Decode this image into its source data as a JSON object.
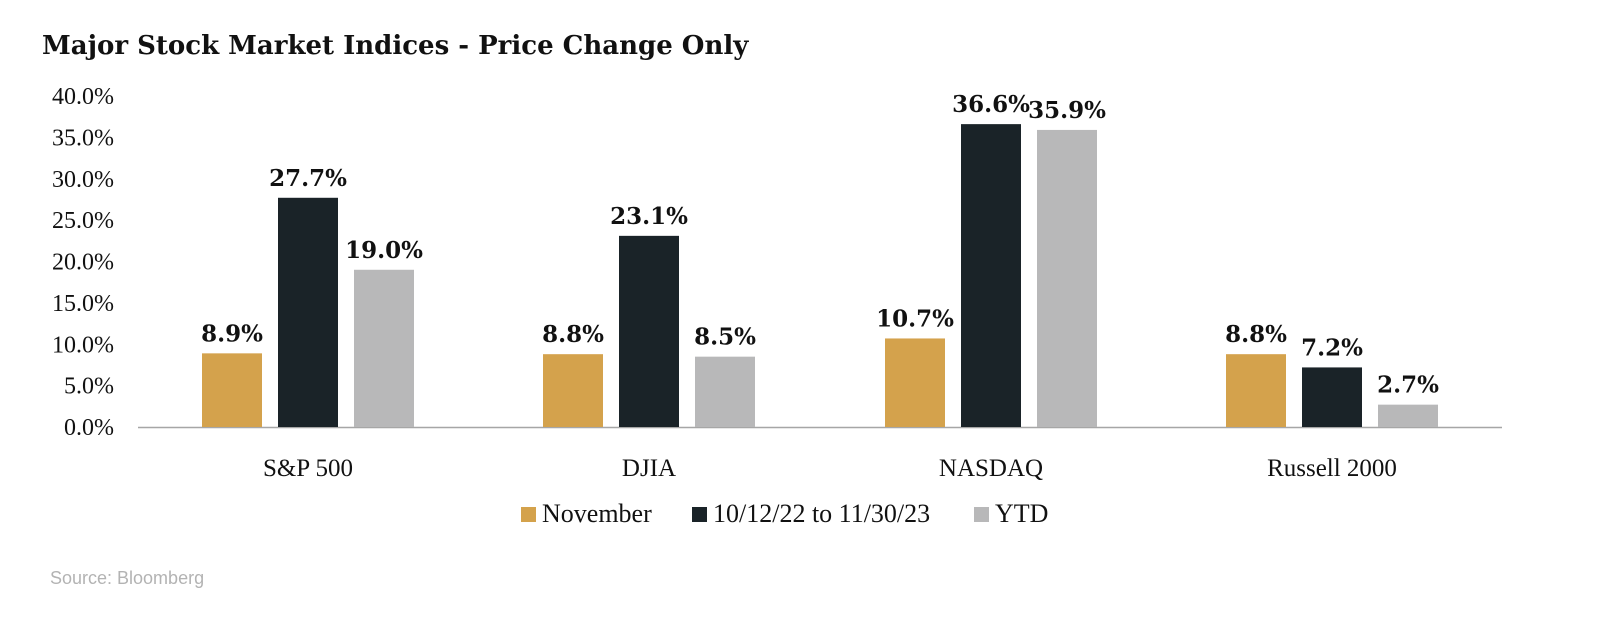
{
  "chart_data": {
    "type": "bar",
    "title": "Major Stock Market Indices - Price Change Only",
    "categories": [
      "S&P 500",
      "DJIA",
      "NASDAQ",
      "Russell 2000"
    ],
    "series": [
      {
        "name": "November",
        "values": [
          8.9,
          8.8,
          10.7,
          8.8
        ],
        "labels": [
          "8.9%",
          "8.8%",
          "10.7%",
          "8.8%"
        ],
        "color": "#D4A24C"
      },
      {
        "name": "10/12/22 to 11/30/23",
        "values": [
          27.7,
          23.1,
          36.6,
          7.2
        ],
        "labels": [
          "27.7%",
          "23.1%",
          "36.6%",
          "7.2%"
        ],
        "color": "#1A2328"
      },
      {
        "name": "YTD",
        "values": [
          19.0,
          8.5,
          35.9,
          2.7
        ],
        "labels": [
          "19.0%",
          "8.5%",
          "35.9%",
          "2.7%"
        ],
        "color": "#B8B8B9"
      }
    ],
    "yticks": [
      0,
      5,
      10,
      15,
      20,
      25,
      30,
      35,
      40
    ],
    "ytick_labels": [
      "0.0%",
      "5.0%",
      "10.0%",
      "15.0%",
      "20.0%",
      "25.0%",
      "30.0%",
      "35.0%",
      "40.0%"
    ],
    "ylim": [
      0,
      40
    ],
    "xlabel": "",
    "ylabel": "",
    "grid": false,
    "legend": "bottom-center",
    "axis_color": "#A6A6A6",
    "source": "Source: Bloomberg"
  }
}
